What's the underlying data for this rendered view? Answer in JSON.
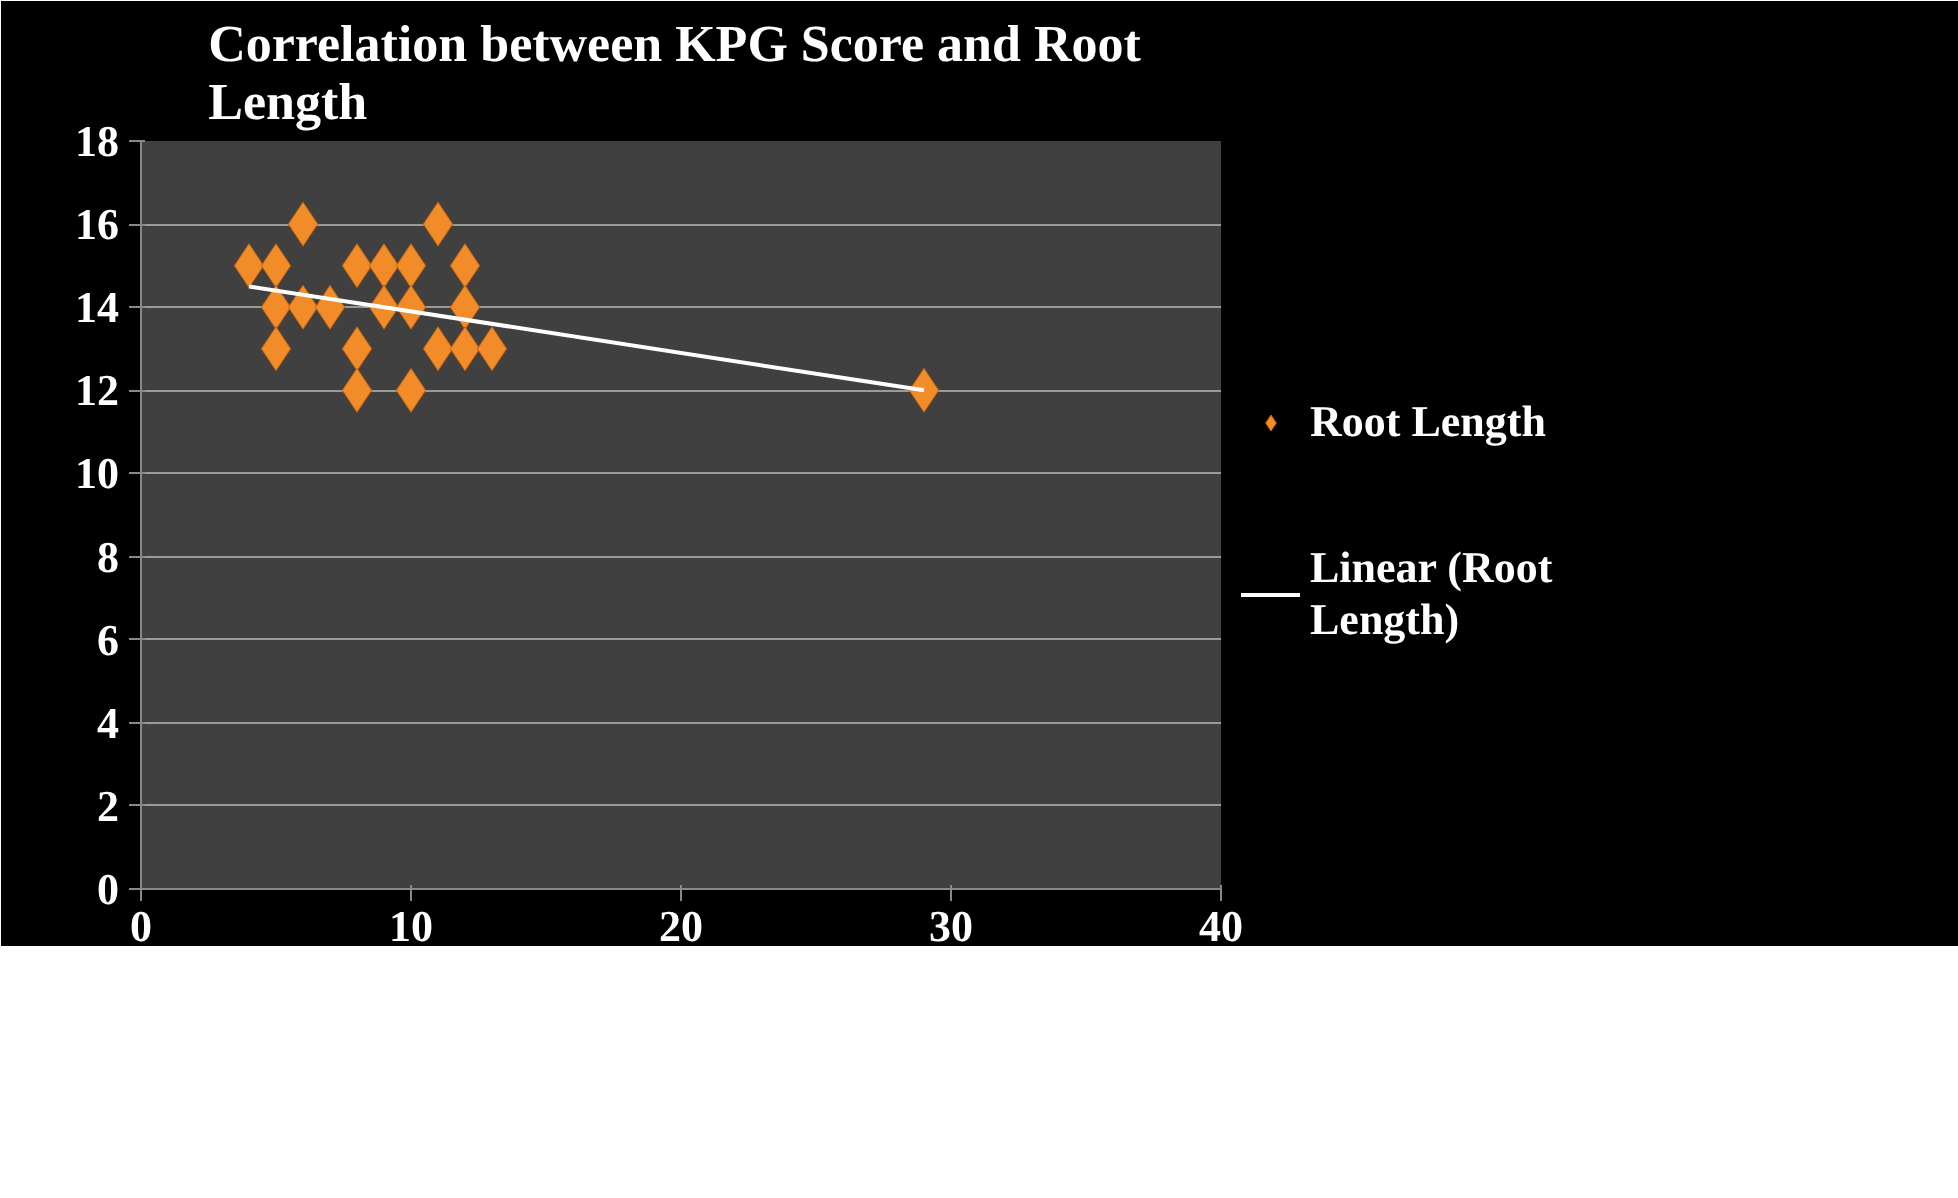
{
  "chart_data": {
    "type": "scatter",
    "title": "Correlation  between KPG Score and Root Length",
    "xlim": [
      0,
      40
    ],
    "xticks": [
      0,
      10,
      20,
      30,
      40
    ],
    "ylim": [
      0,
      18
    ],
    "yticks": [
      0,
      2,
      4,
      6,
      8,
      10,
      12,
      14,
      16,
      18
    ],
    "grid": "y",
    "legend": "right",
    "marker": "diamond",
    "series": [
      {
        "name": "Root Length",
        "color": "#f28c28",
        "x": [
          4,
          5,
          6,
          5,
          6,
          7,
          5,
          8,
          9,
          10,
          8,
          8,
          10,
          9,
          10,
          11,
          12,
          12,
          11,
          12,
          13,
          29
        ],
        "values": [
          15,
          15,
          16,
          14,
          14,
          14,
          13,
          15,
          15,
          15,
          13,
          12,
          12,
          14,
          14,
          16,
          15,
          14,
          13,
          13,
          13,
          12
        ]
      },
      {
        "name": "Linear (Root Length)",
        "type": "line",
        "color": "#ffffff",
        "line_style": "solid",
        "marker": "none",
        "x": [
          4,
          29
        ],
        "values": [
          14.5,
          12
        ]
      }
    ]
  }
}
